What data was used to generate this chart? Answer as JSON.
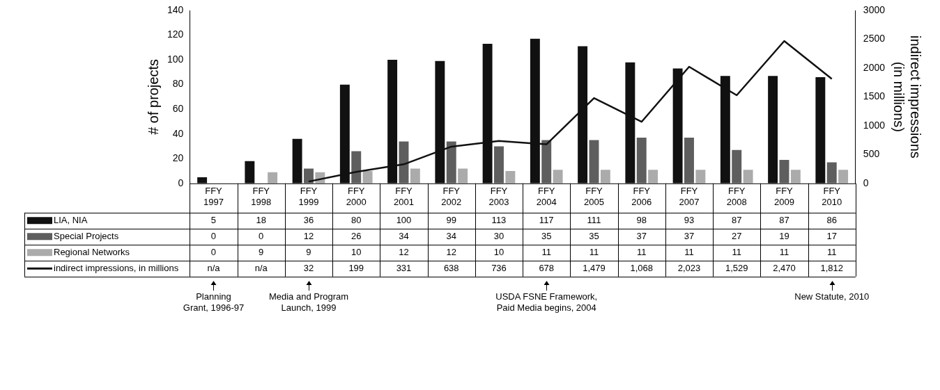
{
  "chart_data": {
    "type": "bar",
    "ylabel": "# of projects",
    "y2label": "indirect impressions (in millions)",
    "categories": [
      "FFY 1997",
      "FFY 1998",
      "FFY 1999",
      "FFY 2000",
      "FFY 2001",
      "FFY 2002",
      "FFY 2003",
      "FFY 2004",
      "FFY 2005",
      "FFY 2006",
      "FFY 2007",
      "FFY 2008",
      "FFY 2009",
      "FFY 2010"
    ],
    "series": [
      {
        "name": "LIA, NIA",
        "color": "#111111",
        "values": [
          5,
          18,
          36,
          80,
          100,
          99,
          113,
          117,
          111,
          98,
          93,
          87,
          87,
          86
        ]
      },
      {
        "name": "Special Projects",
        "color": "#5e5e5e",
        "values": [
          0,
          0,
          12,
          26,
          34,
          34,
          30,
          35,
          35,
          37,
          37,
          27,
          19,
          17
        ]
      },
      {
        "name": "Regional Networks",
        "color": "#ababab",
        "values": [
          0,
          9,
          9,
          10,
          12,
          12,
          10,
          11,
          11,
          11,
          11,
          11,
          11,
          11
        ]
      },
      {
        "name": "indirect impressions, in millions",
        "type": "line",
        "axis": "y2",
        "color": "#111111",
        "values": [
          null,
          null,
          32,
          199,
          331,
          638,
          736,
          678,
          1479,
          1068,
          2023,
          1529,
          2470,
          1812
        ],
        "value_labels": [
          "n/a",
          "n/a",
          "32",
          "199",
          "331",
          "638",
          "736",
          "678",
          "1,479",
          "1,068",
          "2,023",
          "1,529",
          "2,470",
          "1,812"
        ]
      }
    ],
    "ylim": [
      0,
      140
    ],
    "yticks": [
      0,
      20,
      40,
      60,
      80,
      100,
      120,
      140
    ],
    "y2lim": [
      0,
      3000
    ],
    "y2ticks": [
      0,
      500,
      1000,
      1500,
      2000,
      2500,
      3000
    ],
    "data_labels": true,
    "legend": "bottom",
    "marker": "none",
    "annotations": [
      "Planning Grant, 1996-97",
      "Media and Program Launch, 1999",
      "USDA FSNE Framework, Paid Media begins, 2004",
      "New Statute, 2010"
    ]
  }
}
